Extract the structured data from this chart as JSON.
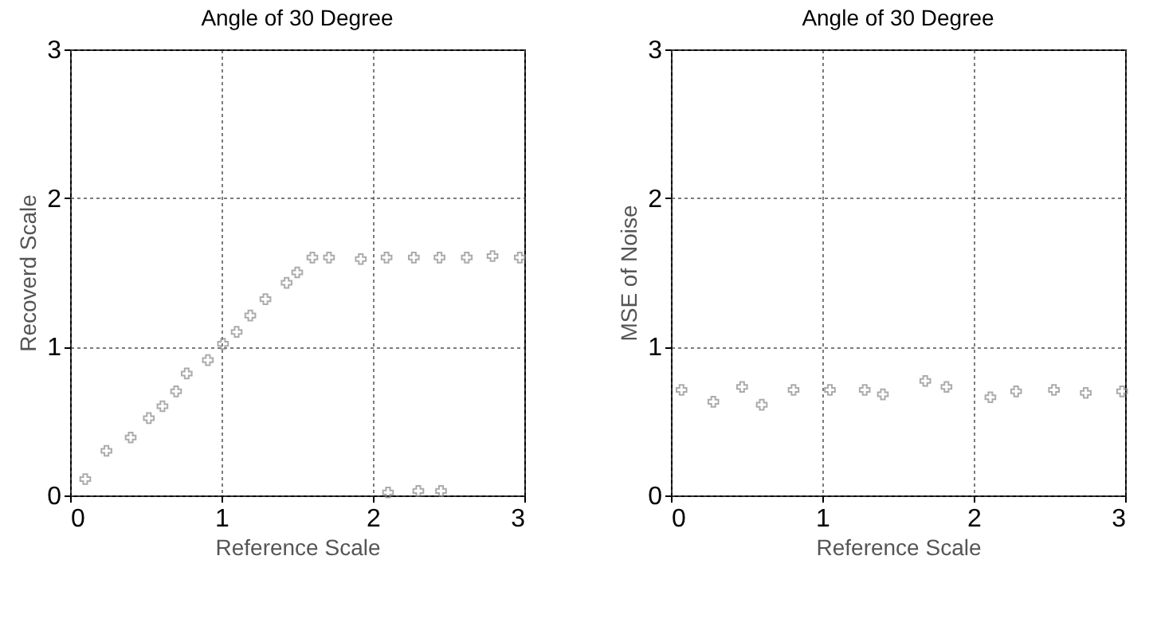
{
  "chart_data": [
    {
      "type": "scatter",
      "title": "Angle of 30 Degree",
      "xlabel": "Reference Scale",
      "ylabel": "Recoverd Scale",
      "x": [
        0.1,
        0.24,
        0.4,
        0.52,
        0.61,
        0.7,
        0.77,
        0.91,
        1.01,
        1.1,
        1.19,
        1.29,
        1.43,
        1.5,
        1.6,
        1.71,
        1.92,
        2.09,
        2.1,
        2.27,
        2.3,
        2.44,
        2.45,
        2.62,
        2.79,
        2.97
      ],
      "series": [
        {
          "color": "#888888",
          "values": [
            0.11,
            0.3,
            0.39,
            0.52,
            0.6,
            0.7,
            0.82,
            0.91,
            1.02,
            1.1,
            1.21,
            1.32,
            1.43,
            1.5,
            1.6,
            1.6,
            1.59,
            1.6,
            0.02,
            1.6,
            0.03,
            1.6,
            0.03,
            1.6,
            1.61,
            1.6
          ]
        }
      ],
      "xlim": [
        0,
        3
      ],
      "ylim": [
        0,
        3
      ],
      "xticks": [
        0,
        1,
        2,
        3
      ],
      "yticks": [
        0,
        1,
        2,
        3
      ],
      "grid": true,
      "marker": "cross"
    },
    {
      "type": "scatter",
      "title": "Angle of 30 Degree",
      "xlabel": "Reference Scale",
      "ylabel": "MSE of Noise",
      "x": [
        0.07,
        0.28,
        0.47,
        0.6,
        0.81,
        1.05,
        1.28,
        1.4,
        1.68,
        1.82,
        2.11,
        2.28,
        2.53,
        2.74,
        2.98
      ],
      "series": [
        {
          "color": "#888888",
          "values": [
            0.71,
            0.63,
            0.73,
            0.61,
            0.71,
            0.71,
            0.71,
            0.68,
            0.77,
            0.73,
            0.66,
            0.7,
            0.71,
            0.69,
            0.7
          ]
        }
      ],
      "xlim": [
        0,
        3
      ],
      "ylim": [
        0,
        3
      ],
      "xticks": [
        0,
        1,
        2,
        3
      ],
      "yticks": [
        0,
        1,
        2,
        3
      ],
      "grid": true,
      "marker": "cross"
    }
  ]
}
